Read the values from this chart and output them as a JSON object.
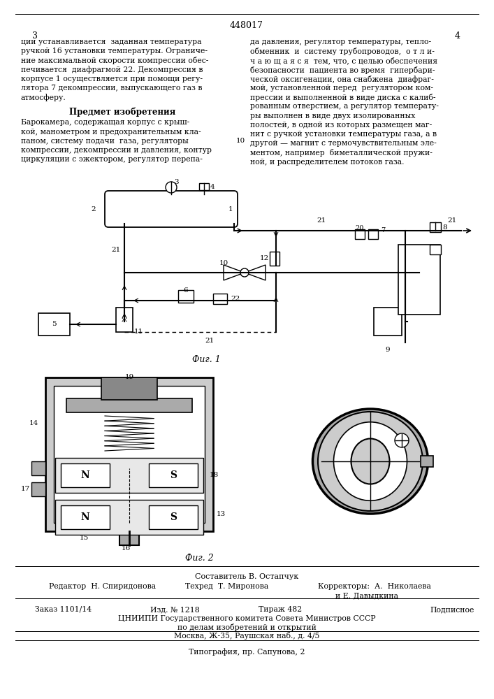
{
  "title_number": "448017",
  "page_left": "3",
  "page_right": "4",
  "col1_text": [
    "ции устанавливается  заданная температура",
    "ручкой 16 установки температуры. Ограниче-",
    "ние максимальной скорости компрессии обес-",
    "печивается  диафрагмой 22. Декомпрессия в",
    "корпусе 1 осуществляется при помощи регу-",
    "лятора 7 декомпрессии, выпускающего газ в",
    "атмосферу."
  ],
  "predmet_header": "Предмет изобретения",
  "predmet_text": [
    "Барокамера, содержащая корпус с крыш-",
    "кой, манометром и предохранительным кла-",
    "паном, систему подачи  газа, регуляторы",
    "компрессии, декомпрессии и давления, контур",
    "циркуляции с эжектором, регулятор перепа-"
  ],
  "col2_text": [
    "да давления, регулятор температуры, тепло-",
    "обменник  и  систему трубопроводов,  о т л и-",
    "ч а ю щ а я с я  тем, что, с целью обеспечения",
    "безопасности  пациента во время  гипербари-",
    "ческой оксигенации, она снабжена  диафраг-",
    "мой, установленной перед  регулятором ком-",
    "прессии и выполненной в виде диска с калиб-",
    "рованным отверстием, а регулятор температу-",
    "ры выполнен в виде двух изолированных",
    "полостей, в одной из которых размещен маг-",
    "нит с ручкой установки температуры газа, а в",
    "другой — магнит с термочувствительным эле-",
    "ментом, например  биметаллической пружи-",
    "ной, и распределителем потоков газа."
  ],
  "fig1_label": "Фиг. 1",
  "fig2_label": "Фиг. 2",
  "footer_composer": "Составитель В. Остапчук",
  "footer_editor": "Редактор  Н. Спиридонова",
  "footer_tech": "Техред  Т. Миронова",
  "footer_correctors": "Корректоры:  А.  Николаева",
  "footer_corrector2": "и Е. Давыдкина",
  "footer_order": "Заказ 1101/14",
  "footer_izd": "Изд. № 1218",
  "footer_tirazh": "Тираж 482",
  "footer_podpisnoe": "Подписное",
  "footer_cniipи": "ЦНИИПИ Государственного комитета Совета Министров СССР",
  "footer_dela": "по делам изобретений и открытий",
  "footer_moscow": "Москва, Ж-35, Раушская наб., д. 4/5",
  "footer_tipografia": "Типография, пр. Сапунова, 2",
  "bg_color": "#ffffff",
  "text_color": "#000000",
  "line_color": "#000000"
}
